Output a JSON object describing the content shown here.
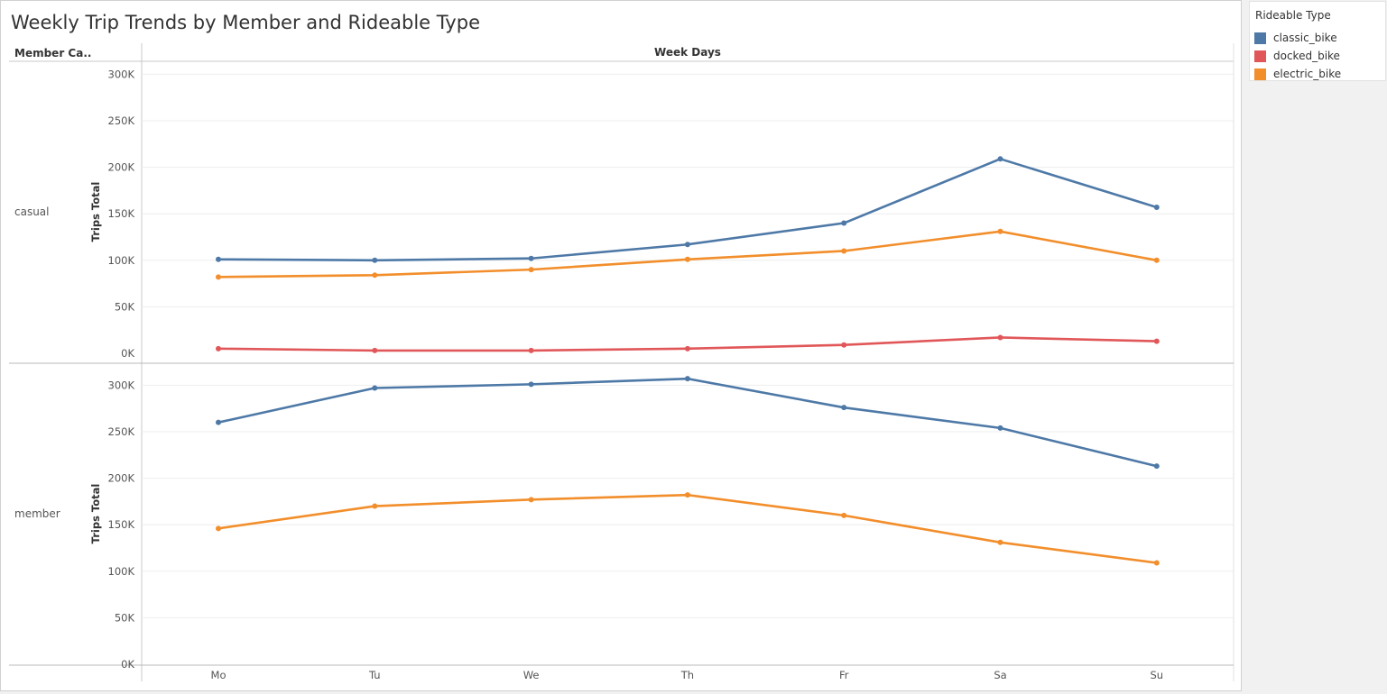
{
  "title": "Weekly Trip Trends by Member and Rideable Type",
  "headers": {
    "row_field": "Member Ca..",
    "column_field": "Week Days"
  },
  "legend": {
    "title": "Rideable Type",
    "items": [
      {
        "label": "classic_bike",
        "color": "#4e79a7"
      },
      {
        "label": "docked_bike",
        "color": "#e15759"
      },
      {
        "label": "electric_bike",
        "color": "#f28e2b"
      }
    ]
  },
  "chart_data": {
    "type": "line",
    "categories": [
      "Mo",
      "Tu",
      "We",
      "Th",
      "Fr",
      "Sa",
      "Su"
    ],
    "ylabel": "Trips Total",
    "y_ticks": [
      "0K",
      "50K",
      "100K",
      "150K",
      "200K",
      "250K",
      "300K"
    ],
    "grid": true,
    "legend_position": "top-right",
    "panels": [
      {
        "row_label": "casual",
        "ylim": [
          0,
          320000
        ],
        "series": [
          {
            "name": "classic_bike",
            "values": [
              101000,
              100000,
              102000,
              117000,
              140000,
              209000,
              157000
            ]
          },
          {
            "name": "docked_bike",
            "values": [
              5000,
              3000,
              3000,
              5000,
              9000,
              17000,
              13000
            ]
          },
          {
            "name": "electric_bike",
            "values": [
              82000,
              84000,
              90000,
              101000,
              110000,
              131000,
              100000
            ]
          }
        ]
      },
      {
        "row_label": "member",
        "ylim": [
          0,
          320000
        ],
        "series": [
          {
            "name": "classic_bike",
            "values": [
              260000,
              297000,
              301000,
              307000,
              276000,
              254000,
              213000
            ]
          },
          {
            "name": "electric_bike",
            "values": [
              146000,
              170000,
              177000,
              182000,
              160000,
              131000,
              109000
            ]
          }
        ]
      }
    ]
  }
}
